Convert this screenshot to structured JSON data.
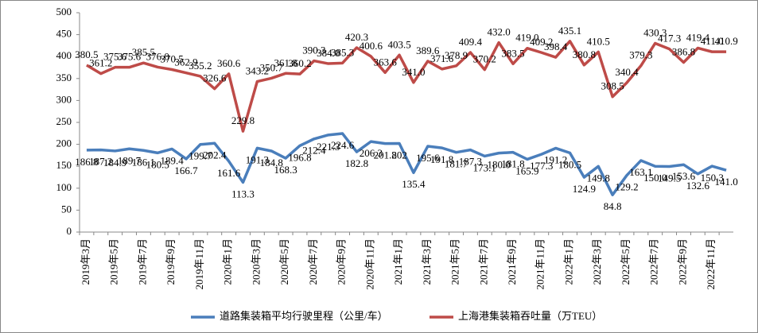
{
  "chart_data": {
    "type": "line",
    "categories": [
      "2019年3月",
      null,
      "2019年5月",
      null,
      "2019年7月",
      null,
      "2019年9月",
      null,
      "2019年11月",
      null,
      "2020年1月",
      null,
      "2020年3月",
      null,
      "2020年5月",
      null,
      "2020年7月",
      null,
      "2020年9月",
      null,
      "2020年11月",
      null,
      "2021年1月",
      null,
      "2021年3月",
      null,
      "2021年5月",
      null,
      "2021年7月",
      null,
      "2021年9月",
      null,
      "2021年11月",
      null,
      "2022年1月",
      null,
      "2022年3月",
      null,
      "2022年5月",
      null,
      "2022年7月",
      null,
      "2022年9月",
      null,
      "2022年11月",
      null
    ],
    "series": [
      {
        "name": "道路集装箱平均行驶里程（公里/车）",
        "color": "#4a7ebb",
        "values": [
          186.8,
          187.2,
          184.9,
          189.7,
          186.1,
          180.5,
          189.4,
          166.7,
          199.7,
          202.4,
          161.6,
          113.3,
          191.3,
          184.8,
          168.3,
          196.8,
          212.4,
          221.3,
          224.6,
          182.8,
          206.3,
          201.8,
          202,
          135.4,
          195.6,
          191.8,
          181.7,
          187.3,
          173.1,
          180.0,
          181.8,
          165.9,
          177.3,
          191.2,
          180.5,
          124.9,
          149.8,
          84.8,
          129.2,
          163.1,
          150.0,
          149.5,
          153.6,
          132.6,
          150.3,
          141.0
        ],
        "value_labels": [
          "186.8",
          "187.2",
          "184.9",
          "189.7",
          "186.1",
          "180.5",
          "189.4",
          "166.7",
          "199.7",
          "202.4",
          "161.6",
          "113.3",
          "191.3",
          "184.8",
          "168.3",
          "196.8",
          "212.4",
          "221.3",
          "224.6",
          "182.8",
          "206.3",
          "201.8",
          "202",
          "135.4",
          "195.6",
          "191.8",
          "181.7",
          "187.3",
          "173.1",
          "180.0",
          "181.8",
          "165.9",
          "177.3",
          "191.2",
          "180.5",
          "124.9",
          "149.8",
          "84.8",
          "129.2",
          "163.1",
          "150.0",
          "149.5",
          "153.6",
          "132.6",
          "150.3",
          "141.0"
        ]
      },
      {
        "name": "上海港集装箱吞吐量（万TEU）",
        "color": "#be4b48",
        "values": [
          380.5,
          361.2,
          375.6,
          375.6,
          385.5,
          376.0,
          370.5,
          362.9,
          355.2,
          326.6,
          360.6,
          229.8,
          343.2,
          350.7,
          361.8,
          360.2,
          390.3,
          384.0,
          385.3,
          420.3,
          400.6,
          363.6,
          403.5,
          341.0,
          389.6,
          371.6,
          378.9,
          409.4,
          370.2,
          432.0,
          383.5,
          419.0,
          409.2,
          398.4,
          435.1,
          380.8,
          410.5,
          308.5,
          340.4,
          379.3,
          430.3,
          417.3,
          386.8,
          419.4,
          411.0,
          410.9
        ],
        "value_labels": [
          "380.5",
          "361.2",
          "375.6",
          "375.6",
          "385.5",
          "376.0",
          "370.5",
          "362.9",
          "355.2",
          "326.6",
          "360.6",
          "229.8",
          "343.2",
          "350.7",
          "361.8",
          "360.2",
          "390.3",
          "384.0",
          "385.3",
          "420.3",
          "400.6",
          "363.6",
          "403.5",
          "341.0",
          "389.6",
          "371.6",
          "378.9",
          "409.4",
          "370.2",
          "432.0",
          "383.5",
          "419.0",
          "409.2",
          "398.4",
          "435.1",
          "380.8",
          "410.5",
          "308.5",
          "340.4",
          "379.3",
          "430.3",
          "417.3",
          "386.8",
          "419.4",
          "411.0",
          "410.9"
        ]
      }
    ],
    "ylim": [
      0,
      500
    ],
    "yticks": [
      0,
      50,
      100,
      150,
      200,
      250,
      300,
      350,
      400,
      450,
      500
    ],
    "grid": false
  }
}
